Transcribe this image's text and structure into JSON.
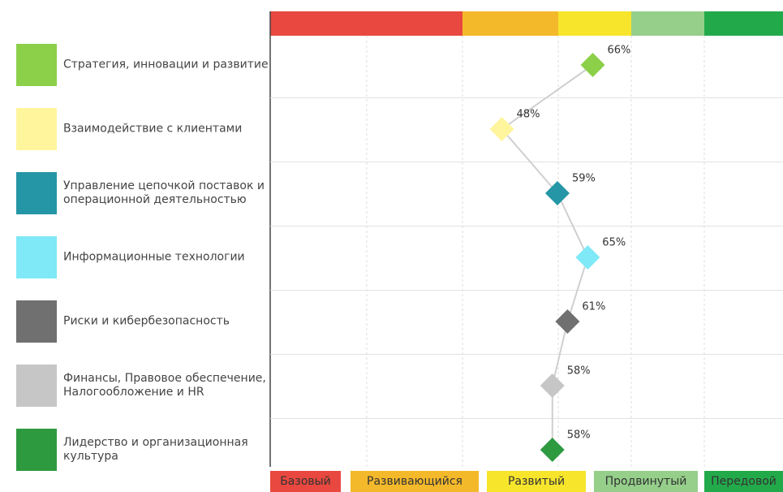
{
  "chart_data": {
    "type": "dot",
    "categories": [
      "Стратегия, инновации и развитие",
      "Взаимодействие с клиентами",
      "Управление цепочкой поставок и операционной деятельностью",
      "Информационные технологии",
      "Риски и кибербезопасность",
      "Финансы, Правовое обеспечение, Налогообложение и HR",
      "Лидерство и организационная культура"
    ],
    "values": [
      66,
      48,
      59,
      65,
      61,
      58,
      58
    ],
    "value_labels": [
      "66%",
      "48%",
      "59%",
      "65%",
      "61%",
      "58%",
      "58%"
    ],
    "colors": [
      "#8cd04a",
      "#fff59d",
      "#2596a6",
      "#7fe9f7",
      "#707070",
      "#c6c6c6",
      "#2e9a40"
    ],
    "xlim": [
      0,
      100
    ],
    "levels": [
      {
        "name": "Базовый",
        "color": "#e8483f"
      },
      {
        "name": "Развивающийся",
        "color": "#f4b92a"
      },
      {
        "name": "Развитый",
        "color": "#f7e52c"
      },
      {
        "name": "Продвинутый",
        "color": "#95cf8a"
      },
      {
        "name": "Передовой",
        "color": "#22aa4a"
      }
    ]
  }
}
